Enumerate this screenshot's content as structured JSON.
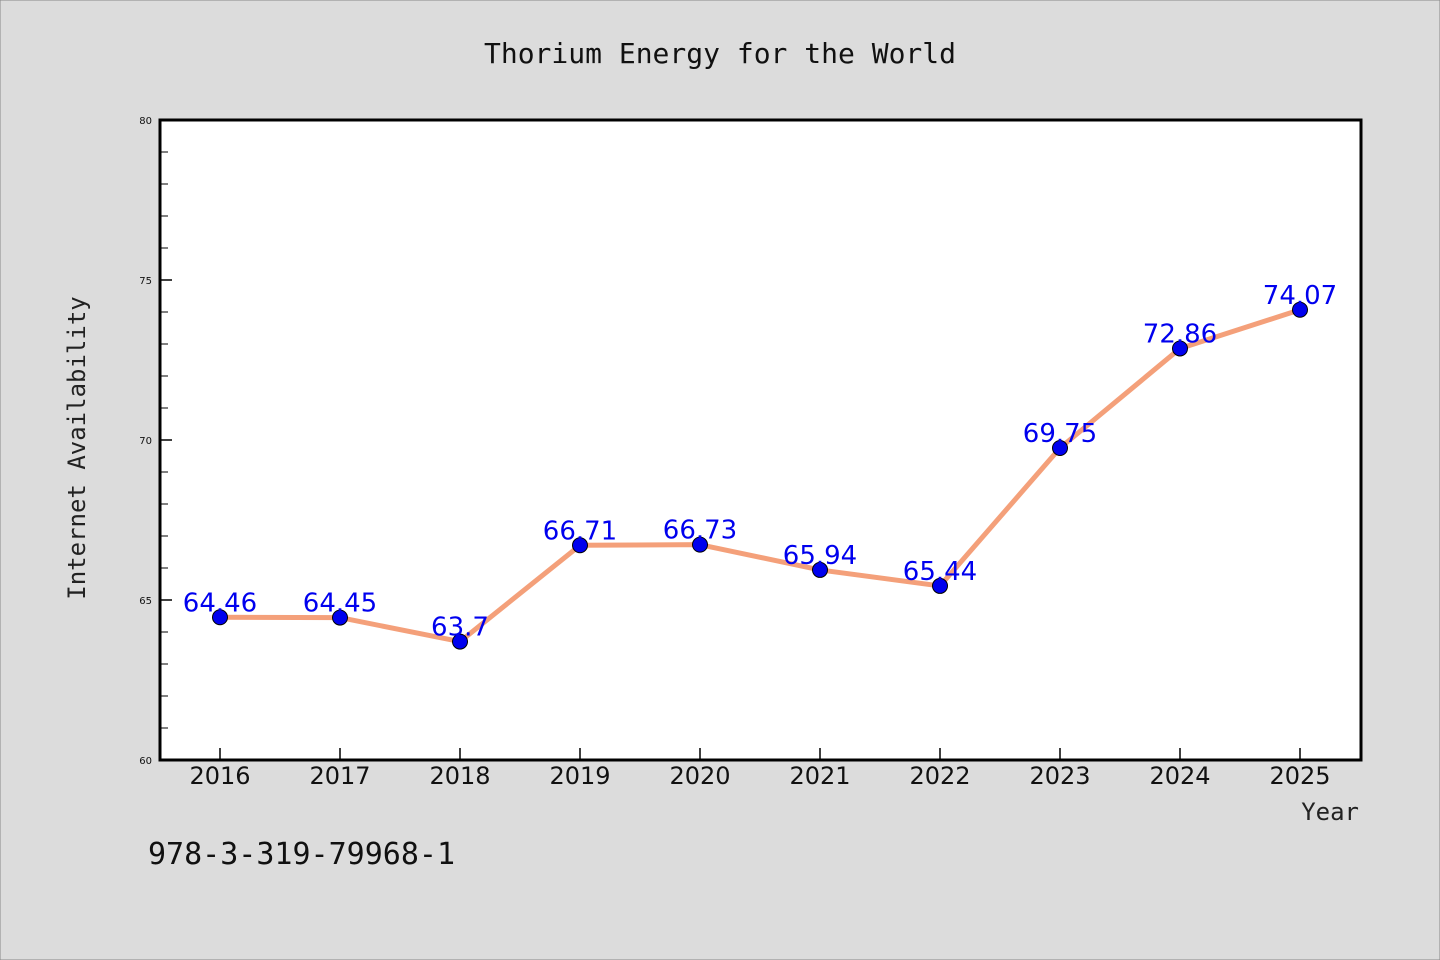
{
  "chart_data": {
    "type": "line",
    "title": "Thorium Energy for the World",
    "xlabel": "Year",
    "ylabel": "Internet Availability",
    "x": [
      "2016",
      "2017",
      "2018",
      "2019",
      "2020",
      "2021",
      "2022",
      "2023",
      "2024",
      "2025"
    ],
    "series": [
      {
        "values": [
          64.46,
          64.45,
          63.7,
          66.71,
          66.73,
          65.94,
          65.44,
          69.75,
          72.86,
          74.07
        ]
      }
    ],
    "data_labels": [
      "64.46",
      "64.45",
      "63.7",
      "66.71",
      "66.73",
      "65.94",
      "65.44",
      "69.75",
      "72.86",
      "74.07"
    ],
    "ylim": [
      60,
      80
    ],
    "yticks": [
      "60",
      "65",
      "70",
      "75",
      "80"
    ],
    "grid": false,
    "legend": "none"
  },
  "footer_text": "978-3-319-79968-1",
  "colors": {
    "background": "#dcdcdc",
    "plot_background": "#ffffff",
    "line": "#f4a07a",
    "marker": "#0000ee",
    "data_label": "#0000ee"
  }
}
